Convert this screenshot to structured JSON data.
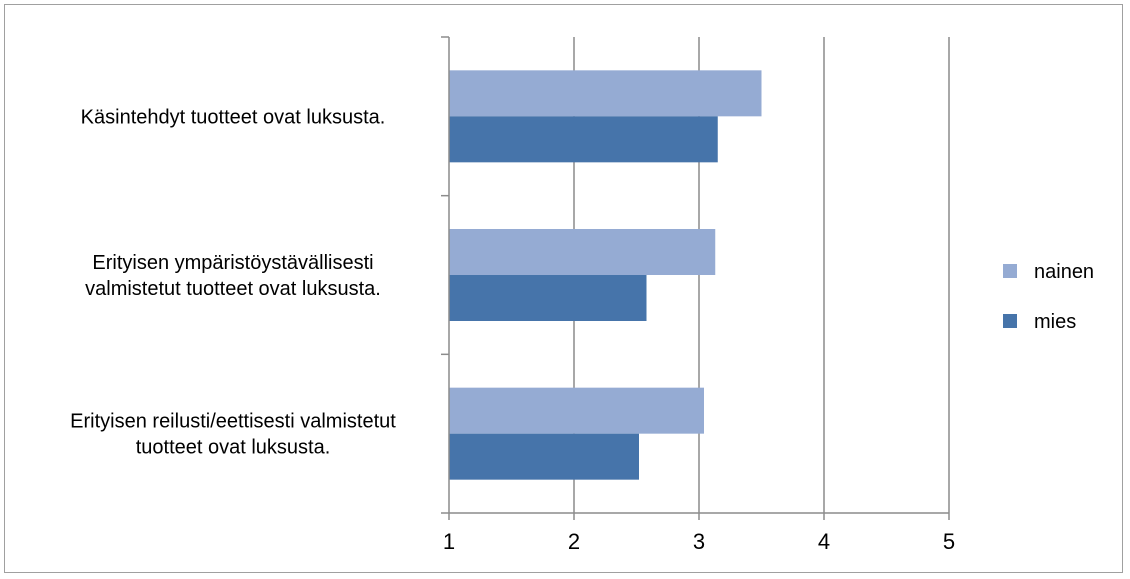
{
  "chart_data": {
    "type": "bar",
    "orientation": "horizontal",
    "categories": [
      [
        "Käsintehdyt tuotteet ovat luksusta."
      ],
      [
        "Erityisen ympäristöystävällisesti",
        "valmistetut tuotteet ovat luksusta."
      ],
      [
        "Erityisen reilusti/eettisesti valmistetut",
        "tuotteet ovat luksusta."
      ]
    ],
    "series": [
      {
        "name": "nainen",
        "color": "#95abd3",
        "values": [
          3.5,
          3.13,
          3.04
        ]
      },
      {
        "name": "mies",
        "color": "#4674aa",
        "values": [
          3.15,
          2.58,
          2.52
        ]
      }
    ],
    "xlim": [
      1,
      5
    ],
    "xticks": [
      "1",
      "2",
      "3",
      "4",
      "5"
    ],
    "grid": true,
    "legend_position": "right",
    "title": "",
    "xlabel": "",
    "ylabel": ""
  }
}
